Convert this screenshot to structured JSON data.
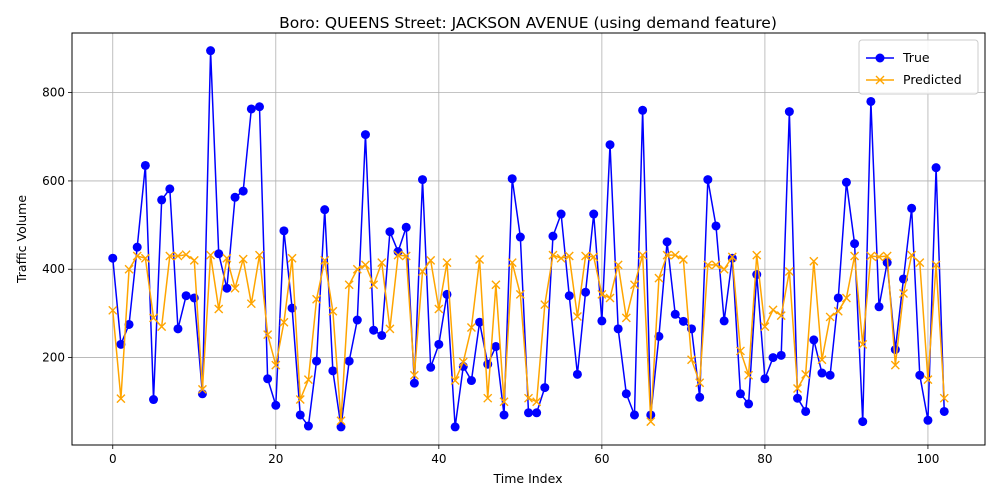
{
  "chart_data": {
    "type": "line",
    "title": "Boro: QUEENS Street: JACKSON AVENUE (using demand feature)",
    "xlabel": "Time Index",
    "ylabel": "Traffic Volume",
    "xlim": [
      -5,
      107
    ],
    "ylim": [
      2,
      935
    ],
    "xticks": [
      0,
      20,
      40,
      60,
      80,
      100
    ],
    "yticks": [
      200,
      400,
      600,
      800
    ],
    "grid": true,
    "legend_position": "top-right",
    "x": [
      0,
      1,
      2,
      3,
      4,
      5,
      6,
      7,
      8,
      9,
      10,
      11,
      12,
      13,
      14,
      15,
      16,
      17,
      18,
      19,
      20,
      21,
      22,
      23,
      24,
      25,
      26,
      27,
      28,
      29,
      30,
      31,
      32,
      33,
      34,
      35,
      36,
      37,
      38,
      39,
      40,
      41,
      42,
      43,
      44,
      45,
      46,
      47,
      48,
      49,
      50,
      51,
      52,
      53,
      54,
      55,
      56,
      57,
      58,
      59,
      60,
      61,
      62,
      63,
      64,
      65,
      66,
      67,
      68,
      69,
      70,
      71,
      72,
      73,
      74,
      75,
      76,
      77,
      78,
      79,
      80,
      81,
      82,
      83,
      84,
      85,
      86,
      87,
      88,
      89,
      90,
      91,
      92,
      93,
      94,
      95,
      96,
      97,
      98,
      99,
      100,
      101,
      102
    ],
    "series": [
      {
        "name": "True",
        "color": "#0000ff",
        "marker": "o",
        "values": [
          425,
          230,
          275,
          450,
          635,
          105,
          557,
          582,
          265,
          340,
          335,
          118,
          895,
          435,
          357,
          563,
          577,
          763,
          768,
          152,
          92,
          487,
          312,
          70,
          45,
          192,
          535,
          170,
          43,
          192,
          285,
          705,
          262,
          250,
          485,
          440,
          495,
          142,
          603,
          178,
          230,
          343,
          43,
          180,
          148,
          280,
          185,
          225,
          70,
          605,
          473,
          75,
          75,
          132,
          475,
          525,
          340,
          162,
          348,
          525,
          283,
          682,
          265,
          118,
          70,
          760,
          70,
          248,
          462,
          298,
          282,
          265,
          110,
          603,
          498,
          283,
          425,
          118,
          95,
          388,
          152,
          200,
          205,
          757,
          108,
          78,
          240,
          165,
          160,
          335,
          597,
          458,
          55,
          780,
          315,
          415,
          218,
          378,
          538,
          160,
          58,
          630,
          78
        ]
      },
      {
        "name": "Predicted",
        "color": "#ffa500",
        "marker": "x",
        "values": [
          307,
          107,
          400,
          430,
          425,
          290,
          270,
          430,
          430,
          433,
          420,
          128,
          432,
          310,
          425,
          357,
          423,
          322,
          432,
          252,
          183,
          280,
          425,
          105,
          150,
          332,
          420,
          305,
          57,
          365,
          400,
          410,
          365,
          415,
          265,
          432,
          430,
          160,
          395,
          420,
          310,
          415,
          148,
          190,
          268,
          422,
          108,
          365,
          100,
          415,
          343,
          108,
          100,
          320,
          432,
          425,
          430,
          293,
          430,
          428,
          343,
          335,
          410,
          290,
          365,
          432,
          55,
          380,
          432,
          432,
          422,
          195,
          143,
          410,
          410,
          400,
          428,
          215,
          160,
          432,
          270,
          308,
          295,
          395,
          130,
          162,
          418,
          195,
          292,
          305,
          335,
          430,
          230,
          430,
          428,
          430,
          183,
          345,
          432,
          415,
          150,
          410,
          108
        ]
      }
    ]
  }
}
